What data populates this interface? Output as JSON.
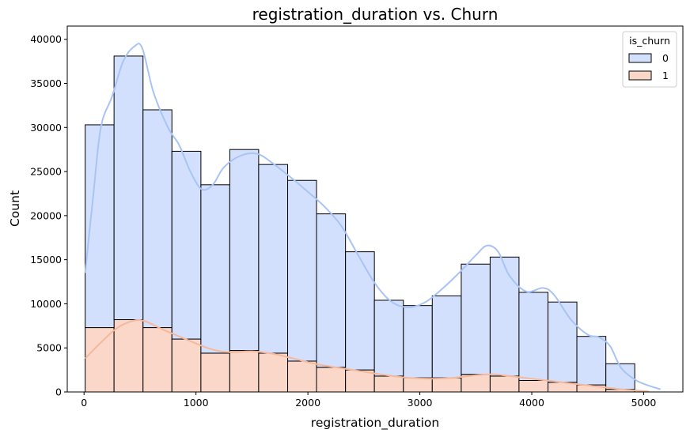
{
  "chart_data": {
    "type": "bar",
    "subtype": "stacked histogram with kde",
    "title": "registration_duration vs. Churn",
    "xlabel": "registration_duration",
    "ylabel": "Count",
    "xlim": [
      -150,
      5350
    ],
    "ylim": [
      0,
      41500
    ],
    "x_ticks": [
      0,
      1000,
      2000,
      3000,
      4000,
      5000
    ],
    "x_tick_labels": [
      "0",
      "1000",
      "2000",
      "3000",
      "4000",
      "5000"
    ],
    "y_ticks": [
      0,
      5000,
      10000,
      15000,
      20000,
      25000,
      30000,
      35000,
      40000
    ],
    "y_tick_labels": [
      "0",
      "5000",
      "10000",
      "15000",
      "20000",
      "25000",
      "30000",
      "35000",
      "40000"
    ],
    "grid": false,
    "legend": {
      "title": "is_churn",
      "placement": "top-right",
      "entries": [
        {
          "label": "0",
          "color": "#d3e0fd"
        },
        {
          "label": "1",
          "color": "#fad7c8"
        }
      ]
    },
    "bin_edges": [
      10,
      268,
      527,
      785,
      1044,
      1302,
      1560,
      1819,
      2077,
      2336,
      2594,
      2853,
      3111,
      3370,
      3628,
      3886,
      4145,
      4403,
      4662,
      4920
    ],
    "series": [
      {
        "name": "1",
        "color": "#fad7c8",
        "kde_color": "#f4b89c",
        "values": [
          7300,
          8200,
          7300,
          6000,
          4400,
          4700,
          4400,
          3500,
          2800,
          2500,
          1800,
          1600,
          1600,
          2000,
          1800,
          1300,
          1100,
          800,
          300
        ],
        "kde": [
          [
            10,
            3800
          ],
          [
            150,
            5600
          ],
          [
            300,
            7300
          ],
          [
            450,
            8100
          ],
          [
            550,
            8000
          ],
          [
            700,
            7100
          ],
          [
            850,
            6300
          ],
          [
            1000,
            5500
          ],
          [
            1150,
            4800
          ],
          [
            1300,
            4500
          ],
          [
            1500,
            4600
          ],
          [
            1700,
            4300
          ],
          [
            1900,
            3700
          ],
          [
            2100,
            3100
          ],
          [
            2300,
            2700
          ],
          [
            2500,
            2300
          ],
          [
            2700,
            1900
          ],
          [
            2900,
            1600
          ],
          [
            3100,
            1500
          ],
          [
            3300,
            1600
          ],
          [
            3500,
            1900
          ],
          [
            3650,
            2000
          ],
          [
            3800,
            1800
          ],
          [
            4000,
            1500
          ],
          [
            4200,
            1200
          ],
          [
            4400,
            900
          ],
          [
            4600,
            600
          ],
          [
            4800,
            300
          ],
          [
            4950,
            150
          ],
          [
            5050,
            40
          ]
        ]
      },
      {
        "name": "0",
        "color": "#d3e0fd",
        "kde_color": "#a8c4f4",
        "values": [
          23000,
          29900,
          24700,
          21300,
          19100,
          22800,
          21400,
          20500,
          17400,
          13400,
          8600,
          8200,
          9300,
          12500,
          13500,
          10000,
          9100,
          5500,
          2900
        ],
        "kde": [
          [
            10,
            13500
          ],
          [
            80,
            22000
          ],
          [
            150,
            30000
          ],
          [
            250,
            33500
          ],
          [
            350,
            37500
          ],
          [
            450,
            39200
          ],
          [
            520,
            39000
          ],
          [
            620,
            34000
          ],
          [
            750,
            30000
          ],
          [
            850,
            28000
          ],
          [
            950,
            25000
          ],
          [
            1050,
            23000
          ],
          [
            1150,
            23500
          ],
          [
            1250,
            25500
          ],
          [
            1400,
            26800
          ],
          [
            1550,
            27000
          ],
          [
            1700,
            25800
          ],
          [
            1850,
            24300
          ],
          [
            2000,
            22700
          ],
          [
            2150,
            21000
          ],
          [
            2300,
            18800
          ],
          [
            2450,
            15500
          ],
          [
            2600,
            12300
          ],
          [
            2750,
            10200
          ],
          [
            2900,
            9600
          ],
          [
            3050,
            10200
          ],
          [
            3200,
            11700
          ],
          [
            3350,
            13500
          ],
          [
            3500,
            15500
          ],
          [
            3600,
            16600
          ],
          [
            3700,
            15900
          ],
          [
            3800,
            13200
          ],
          [
            3950,
            11400
          ],
          [
            4100,
            11800
          ],
          [
            4200,
            11000
          ],
          [
            4350,
            8200
          ],
          [
            4500,
            6500
          ],
          [
            4600,
            6200
          ],
          [
            4700,
            5200
          ],
          [
            4800,
            2700
          ],
          [
            4950,
            1200
          ],
          [
            5150,
            300
          ]
        ]
      }
    ]
  }
}
